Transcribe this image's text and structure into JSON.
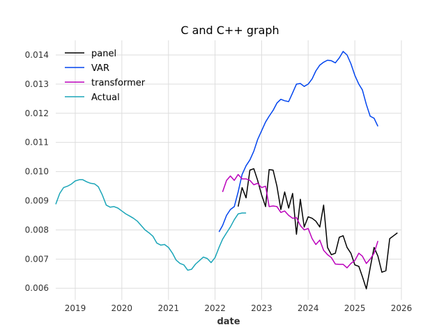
{
  "chart_data": {
    "type": "line",
    "title": "C and C++ graph",
    "xlabel": "date",
    "ylabel": "",
    "x_axis": "time",
    "xlim": [
      "2018-08-01",
      "2026-01-01"
    ],
    "ylim": [
      0.0056,
      0.0145
    ],
    "x_ticks": [
      "2019",
      "2020",
      "2021",
      "2022",
      "2023",
      "2024",
      "2025",
      "2026"
    ],
    "y_ticks": [
      "0.006",
      "0.007",
      "0.008",
      "0.009",
      "0.010",
      "0.011",
      "0.012",
      "0.013",
      "0.014"
    ],
    "grid": true,
    "legend_position": "top-left",
    "series": [
      {
        "name": "panel",
        "color": "#000000",
        "points": [
          [
            "2022-07-01",
            0.0088
          ],
          [
            "2022-08-01",
            0.00945
          ],
          [
            "2022-09-01",
            0.0091
          ],
          [
            "2022-10-01",
            0.01005
          ],
          [
            "2022-11-01",
            0.0101
          ],
          [
            "2022-12-01",
            0.0097
          ],
          [
            "2023-01-01",
            0.0092
          ],
          [
            "2023-02-01",
            0.0088
          ],
          [
            "2023-03-01",
            0.01007
          ],
          [
            "2023-04-01",
            0.01005
          ],
          [
            "2023-05-01",
            0.0095
          ],
          [
            "2023-06-01",
            0.0087
          ],
          [
            "2023-07-01",
            0.0093
          ],
          [
            "2023-08-01",
            0.00875
          ],
          [
            "2023-09-01",
            0.00925
          ],
          [
            "2023-10-01",
            0.00785
          ],
          [
            "2023-11-01",
            0.00905
          ],
          [
            "2023-12-01",
            0.0081
          ],
          [
            "2024-01-01",
            0.00845
          ],
          [
            "2024-02-01",
            0.0084
          ],
          [
            "2024-03-01",
            0.0083
          ],
          [
            "2024-04-01",
            0.0081
          ],
          [
            "2024-05-01",
            0.00885
          ],
          [
            "2024-06-01",
            0.0074
          ],
          [
            "2024-07-01",
            0.00715
          ],
          [
            "2024-08-01",
            0.0072
          ],
          [
            "2024-09-01",
            0.00775
          ],
          [
            "2024-10-01",
            0.0078
          ],
          [
            "2024-11-01",
            0.0074
          ],
          [
            "2024-12-01",
            0.0072
          ],
          [
            "2025-01-01",
            0.0068
          ],
          [
            "2025-02-01",
            0.00675
          ],
          [
            "2025-03-01",
            0.0064
          ],
          [
            "2025-04-01",
            0.00598
          ],
          [
            "2025-05-01",
            0.0067
          ],
          [
            "2025-06-01",
            0.0074
          ],
          [
            "2025-07-01",
            0.0071
          ],
          [
            "2025-08-01",
            0.00655
          ],
          [
            "2025-09-01",
            0.0066
          ],
          [
            "2025-10-01",
            0.0077
          ],
          [
            "2025-11-01",
            0.0078
          ],
          [
            "2025-12-01",
            0.0079
          ]
        ]
      },
      {
        "name": "VAR",
        "color": "#0044ee",
        "points": [
          [
            "2022-02-01",
            0.00793
          ],
          [
            "2022-03-01",
            0.00815
          ],
          [
            "2022-04-01",
            0.0085
          ],
          [
            "2022-05-01",
            0.0087
          ],
          [
            "2022-06-01",
            0.0088
          ],
          [
            "2022-07-01",
            0.0093
          ],
          [
            "2022-08-01",
            0.0099
          ],
          [
            "2022-09-01",
            0.0102
          ],
          [
            "2022-10-01",
            0.0104
          ],
          [
            "2022-11-01",
            0.0107
          ],
          [
            "2022-12-01",
            0.0111
          ],
          [
            "2023-01-01",
            0.0114
          ],
          [
            "2023-02-01",
            0.0117
          ],
          [
            "2023-03-01",
            0.0119
          ],
          [
            "2023-04-01",
            0.0121
          ],
          [
            "2023-05-01",
            0.01235
          ],
          [
            "2023-06-01",
            0.01248
          ],
          [
            "2023-07-01",
            0.01243
          ],
          [
            "2023-08-01",
            0.0124
          ],
          [
            "2023-09-01",
            0.0127
          ],
          [
            "2023-10-01",
            0.013
          ],
          [
            "2023-11-01",
            0.01302
          ],
          [
            "2023-12-01",
            0.01292
          ],
          [
            "2024-01-01",
            0.013
          ],
          [
            "2024-02-01",
            0.01318
          ],
          [
            "2024-03-01",
            0.01345
          ],
          [
            "2024-04-01",
            0.01365
          ],
          [
            "2024-05-01",
            0.01375
          ],
          [
            "2024-06-01",
            0.01382
          ],
          [
            "2024-07-01",
            0.0138
          ],
          [
            "2024-08-01",
            0.01373
          ],
          [
            "2024-09-01",
            0.0139
          ],
          [
            "2024-10-01",
            0.01412
          ],
          [
            "2024-11-01",
            0.014
          ],
          [
            "2024-12-01",
            0.0137
          ],
          [
            "2025-01-01",
            0.0133
          ],
          [
            "2025-02-01",
            0.013
          ],
          [
            "2025-03-01",
            0.0128
          ],
          [
            "2025-04-01",
            0.0123
          ],
          [
            "2025-05-01",
            0.0119
          ],
          [
            "2025-06-01",
            0.01183
          ],
          [
            "2025-07-01",
            0.01155
          ]
        ]
      },
      {
        "name": "transformer",
        "color": "#bb00bb",
        "points": [
          [
            "2022-03-01",
            0.0093
          ],
          [
            "2022-04-01",
            0.0097
          ],
          [
            "2022-05-01",
            0.00985
          ],
          [
            "2022-06-01",
            0.0097
          ],
          [
            "2022-07-01",
            0.0099
          ],
          [
            "2022-08-01",
            0.00975
          ],
          [
            "2022-09-01",
            0.00975
          ],
          [
            "2022-10-01",
            0.0097
          ],
          [
            "2022-11-01",
            0.00955
          ],
          [
            "2022-12-01",
            0.0096
          ],
          [
            "2023-01-01",
            0.00945
          ],
          [
            "2023-02-01",
            0.0095
          ],
          [
            "2023-03-01",
            0.0088
          ],
          [
            "2023-04-01",
            0.00882
          ],
          [
            "2023-05-01",
            0.0088
          ],
          [
            "2023-06-01",
            0.0086
          ],
          [
            "2023-07-01",
            0.00865
          ],
          [
            "2023-08-01",
            0.0085
          ],
          [
            "2023-09-01",
            0.0084
          ],
          [
            "2023-10-01",
            0.00842
          ],
          [
            "2023-11-01",
            0.00815
          ],
          [
            "2023-12-01",
            0.008
          ],
          [
            "2024-01-01",
            0.00805
          ],
          [
            "2024-02-01",
            0.0077
          ],
          [
            "2024-03-01",
            0.0075
          ],
          [
            "2024-04-01",
            0.00765
          ],
          [
            "2024-05-01",
            0.0073
          ],
          [
            "2024-06-01",
            0.00715
          ],
          [
            "2024-07-01",
            0.00705
          ],
          [
            "2024-08-01",
            0.00683
          ],
          [
            "2024-09-01",
            0.00682
          ],
          [
            "2024-10-01",
            0.00682
          ],
          [
            "2024-11-01",
            0.0067
          ],
          [
            "2024-12-01",
            0.00685
          ],
          [
            "2025-01-01",
            0.00695
          ],
          [
            "2025-02-01",
            0.0072
          ],
          [
            "2025-03-01",
            0.0071
          ],
          [
            "2025-04-01",
            0.00685
          ],
          [
            "2025-05-01",
            0.007
          ],
          [
            "2025-06-01",
            0.0072
          ],
          [
            "2025-07-01",
            0.00762
          ]
        ]
      },
      {
        "name": "Actual",
        "color": "#1aa5b8",
        "points": [
          [
            "2018-08-01",
            0.00888
          ],
          [
            "2018-09-01",
            0.00925
          ],
          [
            "2018-10-01",
            0.00945
          ],
          [
            "2018-11-01",
            0.0095
          ],
          [
            "2018-12-01",
            0.00957
          ],
          [
            "2019-01-01",
            0.00968
          ],
          [
            "2019-02-01",
            0.00972
          ],
          [
            "2019-03-01",
            0.00972
          ],
          [
            "2019-04-01",
            0.00965
          ],
          [
            "2019-05-01",
            0.0096
          ],
          [
            "2019-06-01",
            0.00958
          ],
          [
            "2019-07-01",
            0.00948
          ],
          [
            "2019-08-01",
            0.0092
          ],
          [
            "2019-09-01",
            0.00885
          ],
          [
            "2019-10-01",
            0.00878
          ],
          [
            "2019-11-01",
            0.0088
          ],
          [
            "2019-12-01",
            0.00875
          ],
          [
            "2020-01-01",
            0.00865
          ],
          [
            "2020-02-01",
            0.00855
          ],
          [
            "2020-03-01",
            0.00848
          ],
          [
            "2020-04-01",
            0.0084
          ],
          [
            "2020-05-01",
            0.0083
          ],
          [
            "2020-06-01",
            0.00815
          ],
          [
            "2020-07-01",
            0.008
          ],
          [
            "2020-08-01",
            0.0079
          ],
          [
            "2020-09-01",
            0.00778
          ],
          [
            "2020-10-01",
            0.00755
          ],
          [
            "2020-11-01",
            0.00748
          ],
          [
            "2020-12-01",
            0.0075
          ],
          [
            "2021-01-01",
            0.0074
          ],
          [
            "2021-02-01",
            0.0072
          ],
          [
            "2021-03-01",
            0.00697
          ],
          [
            "2021-04-01",
            0.00685
          ],
          [
            "2021-05-01",
            0.0068
          ],
          [
            "2021-06-01",
            0.00662
          ],
          [
            "2021-07-01",
            0.00665
          ],
          [
            "2021-08-01",
            0.00683
          ],
          [
            "2021-09-01",
            0.00695
          ],
          [
            "2021-10-01",
            0.00707
          ],
          [
            "2021-11-01",
            0.00702
          ],
          [
            "2021-12-01",
            0.00688
          ],
          [
            "2022-01-01",
            0.00705
          ],
          [
            "2022-02-01",
            0.0074
          ],
          [
            "2022-03-01",
            0.00768
          ],
          [
            "2022-04-01",
            0.0079
          ],
          [
            "2022-05-01",
            0.0081
          ],
          [
            "2022-06-01",
            0.00835
          ],
          [
            "2022-07-01",
            0.00855
          ],
          [
            "2022-08-01",
            0.00858
          ],
          [
            "2022-09-01",
            0.00858
          ]
        ]
      }
    ]
  }
}
